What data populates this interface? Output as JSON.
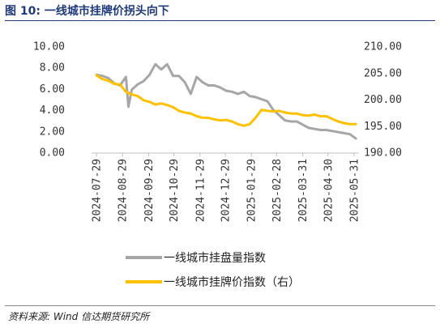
{
  "header": {
    "title": "图 10:  一线城市挂牌价拐头向下"
  },
  "footer": {
    "source": "资料来源:   Wind  信达期货研究所"
  },
  "chart_data": {
    "type": "line",
    "x_tick_labels": [
      "2024-07-29",
      "2024-08-29",
      "2024-09-29",
      "2024-10-29",
      "2024-11-29",
      "2024-12-29",
      "2025-01-29",
      "2025-02-28",
      "2025-03-31",
      "2025-04-30",
      "2025-05-31"
    ],
    "y_left": {
      "lim": [
        0,
        10
      ],
      "ticks": [
        "0.00",
        "2.00",
        "4.00",
        "6.00",
        "8.00",
        "10.00"
      ]
    },
    "y_right": {
      "lim": [
        190,
        210
      ],
      "ticks": [
        "190.00",
        "195.00",
        "200.00",
        "205.00",
        "210.00"
      ]
    },
    "legend_position": "bottom",
    "grid": false,
    "series": [
      {
        "name": "一线城市挂盘量指数",
        "axis": "left",
        "color": "#a6a6a6",
        "x": [
          "2024-07-29",
          "2024-08-05",
          "2024-08-12",
          "2024-08-19",
          "2024-08-26",
          "2024-09-02",
          "2024-09-05",
          "2024-09-09",
          "2024-09-16",
          "2024-09-23",
          "2024-09-30",
          "2024-10-07",
          "2024-10-14",
          "2024-10-21",
          "2024-10-28",
          "2024-11-04",
          "2024-11-11",
          "2024-11-18",
          "2024-11-25",
          "2024-12-02",
          "2024-12-09",
          "2024-12-16",
          "2024-12-23",
          "2024-12-30",
          "2025-01-06",
          "2025-01-13",
          "2025-01-20",
          "2025-01-27",
          "2025-02-03",
          "2025-02-10",
          "2025-02-17",
          "2025-02-24",
          "2025-03-03",
          "2025-03-10",
          "2025-03-17",
          "2025-03-24",
          "2025-03-31",
          "2025-04-07",
          "2025-04-14",
          "2025-04-21",
          "2025-04-28",
          "2025-05-05",
          "2025-05-12",
          "2025-05-19",
          "2025-05-26",
          "2025-06-02"
        ],
        "values": [
          7.3,
          7.2,
          7.0,
          6.5,
          6.3,
          7.1,
          4.3,
          5.9,
          6.4,
          6.7,
          7.3,
          8.3,
          7.8,
          8.3,
          7.2,
          7.2,
          6.6,
          5.5,
          7.1,
          6.6,
          6.3,
          6.3,
          6.1,
          5.8,
          5.7,
          5.5,
          5.7,
          5.3,
          5.2,
          5.0,
          4.8,
          4.0,
          3.5,
          3.0,
          2.9,
          2.9,
          2.6,
          2.3,
          2.2,
          2.1,
          2.1,
          2.0,
          1.9,
          1.8,
          1.7,
          1.3
        ]
      },
      {
        "name": "一线城市挂牌价指数（右）",
        "axis": "right",
        "color": "#ffc000",
        "x": [
          "2024-07-29",
          "2024-08-05",
          "2024-08-12",
          "2024-08-19",
          "2024-08-26",
          "2024-09-02",
          "2024-09-09",
          "2024-09-16",
          "2024-09-23",
          "2024-09-30",
          "2024-10-07",
          "2024-10-14",
          "2024-10-21",
          "2024-10-28",
          "2024-11-04",
          "2024-11-11",
          "2024-11-18",
          "2024-11-25",
          "2024-12-02",
          "2024-12-09",
          "2024-12-16",
          "2024-12-23",
          "2024-12-30",
          "2025-01-06",
          "2025-01-13",
          "2025-01-20",
          "2025-01-27",
          "2025-02-03",
          "2025-02-10",
          "2025-02-17",
          "2025-02-24",
          "2025-03-03",
          "2025-03-10",
          "2025-03-17",
          "2025-03-24",
          "2025-03-31",
          "2025-04-07",
          "2025-04-14",
          "2025-04-21",
          "2025-04-28",
          "2025-05-05",
          "2025-05-12",
          "2025-05-19",
          "2025-05-26",
          "2025-06-02"
        ],
        "values": [
          204.5,
          203.8,
          203.5,
          202.9,
          202.8,
          201.4,
          200.9,
          200.6,
          199.8,
          199.5,
          199.0,
          199.2,
          198.9,
          198.5,
          197.8,
          197.5,
          197.3,
          196.8,
          196.5,
          196.5,
          196.2,
          196.0,
          196.1,
          195.8,
          195.3,
          195.0,
          195.3,
          196.5,
          198.0,
          197.8,
          197.7,
          197.8,
          197.5,
          197.3,
          197.3,
          197.0,
          196.9,
          197.1,
          196.8,
          196.8,
          196.3,
          195.8,
          195.5,
          195.3,
          195.3
        ]
      }
    ]
  }
}
